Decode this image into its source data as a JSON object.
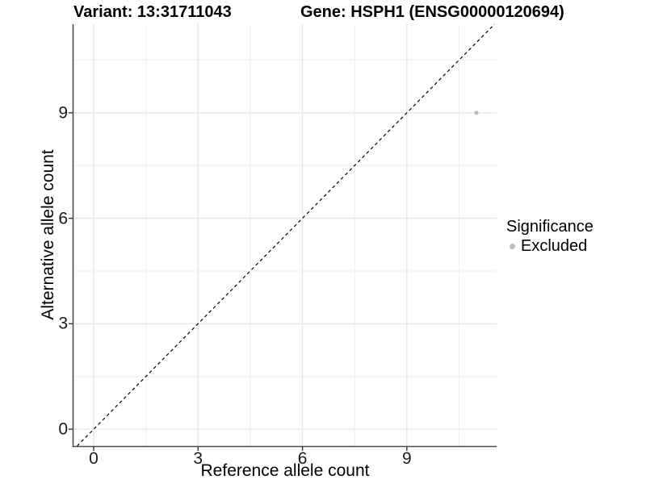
{
  "header": {
    "variant_title": "Variant: 13:31711043",
    "gene_title": "Gene: HSPH1 (ENSG00000120694)"
  },
  "axes": {
    "x": {
      "label": "Reference allele count",
      "ticks": [
        "0",
        "3",
        "6",
        "9"
      ]
    },
    "y": {
      "label": "Alternative allele count",
      "ticks": [
        "0",
        "3",
        "6",
        "9"
      ]
    }
  },
  "legend": {
    "title": "Significance",
    "items": [
      {
        "label": "Excluded",
        "color": "#bdbdbd"
      }
    ]
  },
  "colors": {
    "background": "#ffffff",
    "grid_major": "#e6e6e6",
    "grid_minor": "#efefef",
    "axis_line": "#4d4d4d",
    "tick_mark": "#333333",
    "identity_line": "#000000",
    "point": "#b9b9b9"
  },
  "chart_data": {
    "type": "scatter",
    "title": "Variant: 13:31711043 | Gene: HSPH1 (ENSG00000120694)",
    "xlabel": "Reference allele count",
    "ylabel": "Alternative allele count",
    "xlim": [
      -0.58,
      11.58
    ],
    "ylim": [
      -0.48,
      11.52
    ],
    "x_major_ticks": [
      0,
      3,
      6,
      9
    ],
    "y_major_ticks": [
      0,
      3,
      6,
      9
    ],
    "x_minor_ticks": [
      1.5,
      4.5,
      7.5,
      10.5
    ],
    "y_minor_ticks": [
      1.5,
      4.5,
      7.5,
      10.5
    ],
    "grid": true,
    "legend_position": "right",
    "identity_line": {
      "slope": 1,
      "intercept": 0,
      "style": "dashed"
    },
    "series": [
      {
        "name": "Excluded",
        "color": "#b9b9b9",
        "points": [
          {
            "x": 11,
            "y": 9
          }
        ]
      }
    ]
  }
}
